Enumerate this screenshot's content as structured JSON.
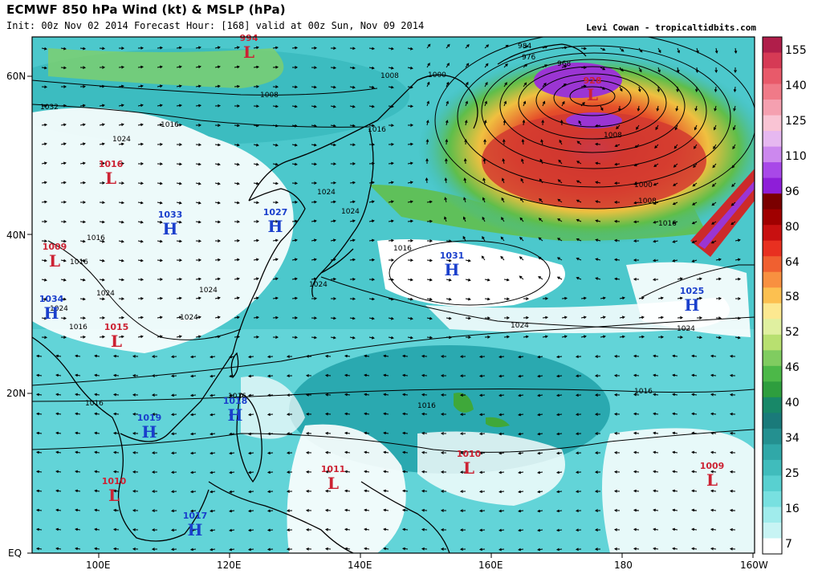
{
  "header": {
    "title": "ECMWF 850 hPa Wind (kt) & MSLP (hPa)",
    "subtitle": "Init: 00z Nov 02 2014 Forecast Hour: [168] valid at 00z Sun, Nov 09 2014",
    "credit": "Levi Cowan - tropicaltidbits.com"
  },
  "axes": {
    "lat_labels": [
      "60N",
      "40N",
      "20N",
      "EQ"
    ],
    "lon_labels": [
      "100E",
      "120E",
      "140E",
      "160E",
      "180",
      "160W"
    ]
  },
  "colorbar": {
    "labels": [
      "155",
      "140",
      "125",
      "110",
      "96",
      "80",
      "64",
      "58",
      "52",
      "46",
      "40",
      "34",
      "25",
      "16",
      "7"
    ]
  },
  "pressure_centers": [
    {
      "type": "L",
      "value": "994",
      "color": "#cc2233"
    },
    {
      "type": "L",
      "value": "928",
      "color": "#cc2233"
    },
    {
      "type": "L",
      "value": "1016",
      "color": "#cc2233"
    },
    {
      "type": "H",
      "value": "1033",
      "color": "#1a3fcc"
    },
    {
      "type": "H",
      "value": "1027",
      "color": "#1a3fcc"
    },
    {
      "type": "L",
      "value": "1009",
      "color": "#cc2233"
    },
    {
      "type": "H",
      "value": "1031",
      "color": "#1a3fcc"
    },
    {
      "type": "H",
      "value": "1034",
      "color": "#1a3fcc"
    },
    {
      "type": "L",
      "value": "1015",
      "color": "#cc2233"
    },
    {
      "type": "H",
      "value": "1025",
      "color": "#1a3fcc"
    },
    {
      "type": "H",
      "value": "1018",
      "color": "#1a3fcc"
    },
    {
      "type": "H",
      "value": "1019",
      "color": "#1a3fcc"
    },
    {
      "type": "L",
      "value": "1010",
      "color": "#cc2233"
    },
    {
      "type": "L",
      "value": "1011",
      "color": "#cc2233"
    },
    {
      "type": "L",
      "value": "1009",
      "color": "#cc2233"
    },
    {
      "type": "L",
      "value": "1010",
      "color": "#cc2233"
    },
    {
      "type": "H",
      "value": "1017",
      "color": "#1a3fcc"
    }
  ],
  "isobar_labels": [
    "984",
    "976",
    "968",
    "1008",
    "1000",
    "1008",
    "1032",
    "1016",
    "1024",
    "1016",
    "1024",
    "1024",
    "1024",
    "1016",
    "1008",
    "1000",
    "1008",
    "1016",
    "1024",
    "1024",
    "1024",
    "1016",
    "1016",
    "1016",
    "1016",
    "1024",
    "1024",
    "1016",
    "1016",
    "1016",
    "1024"
  ]
}
